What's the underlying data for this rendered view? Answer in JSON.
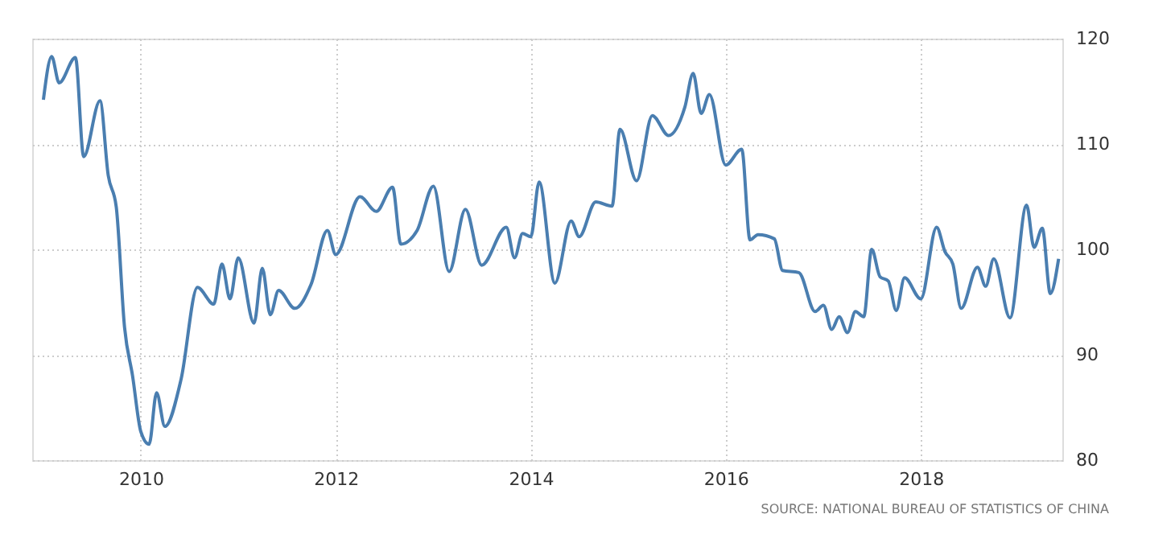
{
  "chart_data": {
    "type": "line",
    "x": [
      "2009-01",
      "2009-02",
      "2009-03",
      "2009-05",
      "2009-06",
      "2009-08",
      "2009-09",
      "2009-10",
      "2009-11",
      "2009-12",
      "2010-01",
      "2010-02",
      "2010-03",
      "2010-04",
      "2010-06",
      "2010-08",
      "2010-10",
      "2010-11",
      "2010-12",
      "2011-01",
      "2011-03",
      "2011-04",
      "2011-05",
      "2011-06",
      "2011-08",
      "2011-10",
      "2011-12",
      "2012-01",
      "2012-04",
      "2012-06",
      "2012-08",
      "2012-09",
      "2012-11",
      "2013-01",
      "2013-03",
      "2013-05",
      "2013-07",
      "2013-10",
      "2013-11",
      "2013-12",
      "2014-01",
      "2014-02",
      "2014-04",
      "2014-06",
      "2014-07",
      "2014-09",
      "2014-11",
      "2014-12",
      "2015-02",
      "2015-04",
      "2015-06",
      "2015-08",
      "2015-09",
      "2015-10",
      "2015-11",
      "2016-01",
      "2016-03",
      "2016-04",
      "2016-05",
      "2016-07",
      "2016-08",
      "2016-10",
      "2016-12",
      "2017-01",
      "2017-02",
      "2017-03",
      "2017-04",
      "2017-05",
      "2017-06",
      "2017-07",
      "2017-08",
      "2017-09",
      "2017-10",
      "2017-11",
      "2018-01",
      "2018-03",
      "2018-04",
      "2018-05",
      "2018-06",
      "2018-08",
      "2018-09",
      "2018-10",
      "2018-12",
      "2019-02",
      "2019-03",
      "2019-04",
      "2019-05",
      "2019-06"
    ],
    "series": [
      {
        "color": "#4a7eb0",
        "values": [
          114.2,
          118.3,
          115.8,
          118.2,
          108.8,
          114.1,
          107,
          104,
          92.6,
          88,
          82.7,
          81.5,
          86.4,
          83.2,
          87.7,
          96.4,
          94.8,
          98.6,
          95.3,
          99.2,
          93,
          98.2,
          93.8,
          96.1,
          94.4,
          96.7,
          101.8,
          99.5,
          105,
          103.6,
          105.9,
          100.5,
          101.8,
          106,
          97.9,
          103.8,
          98.5,
          102.1,
          99.2,
          101.5,
          101.2,
          106.4,
          96.8,
          102.7,
          101.2,
          104.5,
          104.1,
          111.4,
          106.5,
          112.7,
          110.8,
          113.5,
          116.7,
          112.9,
          114.7,
          108,
          109.5,
          100.9,
          101.4,
          101,
          98,
          97.8,
          94.1,
          94.7,
          92.4,
          93.6,
          92.1,
          94.1,
          93.6,
          100,
          97.4,
          97,
          94.2,
          97.3,
          95.3,
          102.1,
          99.8,
          98.6,
          94.4,
          98.3,
          96.5,
          99.1,
          93.5,
          104.2,
          100.2,
          102,
          95.8,
          99.1
        ]
      }
    ],
    "xlim": [
      "2008-11-20",
      "2019-06-15"
    ],
    "xticks": [
      "2010",
      "2012",
      "2014",
      "2016",
      "2018"
    ],
    "ylim": [
      80,
      120
    ],
    "yticks": [
      80,
      90,
      100,
      110,
      120
    ],
    "grid": true,
    "annotations": [
      "SOURCE: NATIONAL BUREAU OF STATISTICS OF CHINA"
    ]
  }
}
